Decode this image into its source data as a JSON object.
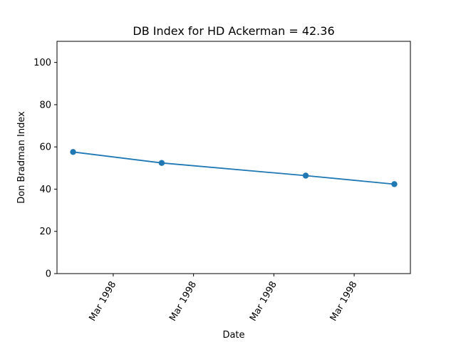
{
  "chart_data": {
    "type": "line",
    "title": "DB Index for HD Ackerman = 42.36",
    "xlabel": "Date",
    "ylabel": "Don Bradman Index",
    "ylim": [
      0,
      110
    ],
    "yticks": [
      0,
      20,
      40,
      60,
      80,
      100
    ],
    "xticks": [
      "Mar 1998",
      "Mar 1998",
      "Mar 1998",
      "Mar 1998"
    ],
    "grid": false,
    "series": [
      {
        "color": "#1f77b4",
        "points": [
          {
            "x": "1998-03-05",
            "y": 57.6
          },
          {
            "x": "1998-03-13",
            "y": 52.4
          },
          {
            "x": "1998-03-26",
            "y": 46.4
          },
          {
            "x": "1998-04-03",
            "y": 42.36
          }
        ]
      }
    ]
  }
}
